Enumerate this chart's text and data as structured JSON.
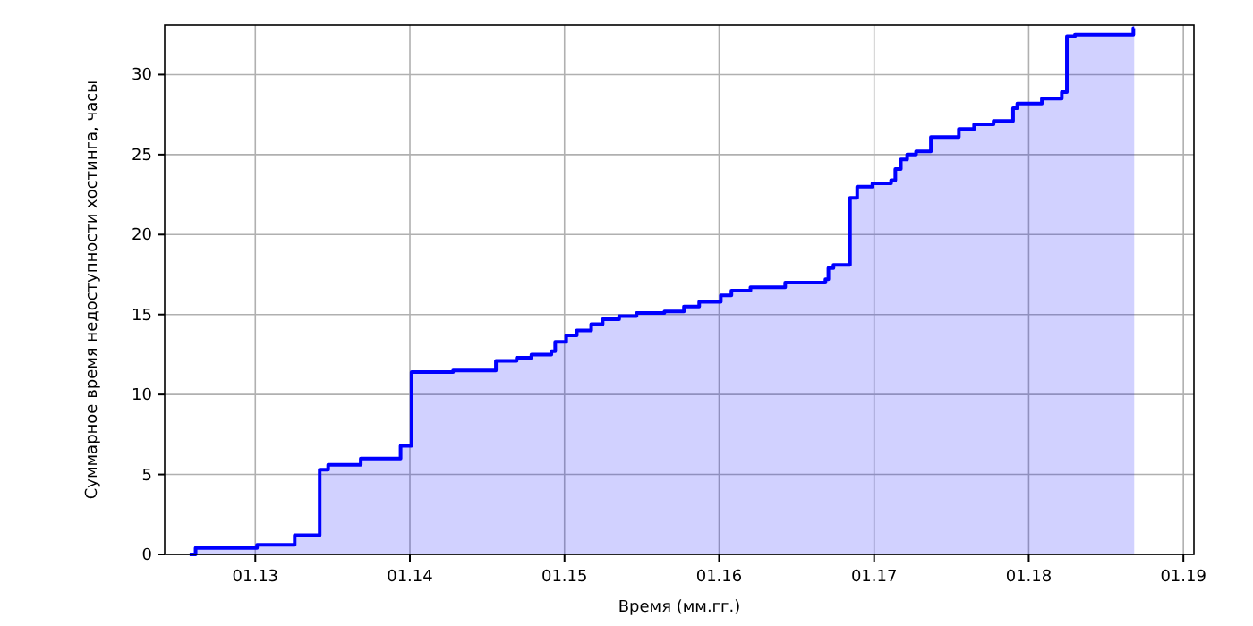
{
  "chart_data": {
    "type": "step",
    "xlabel": "Время (мм.гг.)",
    "ylabel": "Суммарное время недоступности хостинга, часы",
    "x": [
      "2012-07-30",
      "2012-08-13",
      "2013-01-05",
      "2013-04-04",
      "2013-06-02",
      "2013-06-22",
      "2013-09-07",
      "2013-12-10",
      "2014-01-05",
      "2014-04-13",
      "2014-07-23",
      "2014-09-10",
      "2014-10-15",
      "2014-12-01",
      "2014-12-10",
      "2015-01-05",
      "2015-01-30",
      "2015-03-05",
      "2015-04-01",
      "2015-05-10",
      "2015-06-20",
      "2015-08-25",
      "2015-10-10",
      "2015-11-15",
      "2016-01-05",
      "2016-01-30",
      "2016-03-15",
      "2016-06-05",
      "2016-09-08",
      "2016-09-15",
      "2016-09-27",
      "2016-11-05",
      "2016-11-22",
      "2016-12-28",
      "2017-02-10",
      "2017-02-20",
      "2017-03-05",
      "2017-03-20",
      "2017-04-10",
      "2017-05-15",
      "2017-07-20",
      "2017-08-25",
      "2017-10-10",
      "2017-11-25",
      "2017-12-05",
      "2018-02-01",
      "2018-03-20",
      "2018-04-01",
      "2018-04-20",
      "2018-09-05",
      "2018-09-07"
    ],
    "series": [
      {
        "color": "#0000ff",
        "values": [
          0,
          0,
          0.4,
          0.6,
          1.2,
          5.3,
          5.6,
          6.0,
          6.8,
          11.4,
          11.5,
          12.1,
          12.3,
          12.5,
          12.7,
          13.3,
          13.7,
          14.0,
          14.4,
          14.7,
          14.9,
          15.1,
          15.2,
          15.5,
          15.8,
          16.2,
          16.5,
          16.7,
          17.0,
          17.2,
          17.9,
          18.1,
          22.3,
          23.0,
          23.2,
          23.4,
          24.1,
          24.7,
          25.0,
          25.2,
          26.1,
          26.6,
          26.9,
          27.1,
          27.9,
          28.2,
          28.5,
          28.9,
          32.4,
          32.5,
          32.9
        ]
      }
    ],
    "xlim": [
      "2012-06-01",
      "2019-01-26"
    ],
    "xticks": [
      {
        "value": "2013-01",
        "label": "01.13"
      },
      {
        "value": "2014-01",
        "label": "01.14"
      },
      {
        "value": "2015-01",
        "label": "01.15"
      },
      {
        "value": "2016-01",
        "label": "01.16"
      },
      {
        "value": "2017-01",
        "label": "01.17"
      },
      {
        "value": "2018-01",
        "label": "01.18"
      },
      {
        "value": "2019-01",
        "label": "01.19"
      }
    ],
    "ylim": [
      0,
      33.1
    ],
    "yticks": [
      0,
      5,
      10,
      15,
      20,
      25,
      30
    ],
    "grid": true
  }
}
